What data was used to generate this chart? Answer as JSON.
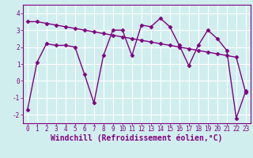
{
  "title": "",
  "xlabel": "Windchill (Refroidissement éolien,°C)",
  "background_color": "#d0eeee",
  "grid_color": "#ffffff",
  "line_color": "#800080",
  "x_values": [
    0,
    1,
    2,
    3,
    4,
    5,
    6,
    7,
    8,
    9,
    10,
    11,
    12,
    13,
    14,
    15,
    16,
    17,
    18,
    19,
    20,
    21,
    22,
    23
  ],
  "series1": [
    -1.7,
    1.1,
    2.2,
    2.1,
    2.1,
    2.0,
    0.4,
    -1.3,
    1.5,
    3.0,
    3.0,
    1.5,
    3.3,
    3.2,
    3.7,
    3.2,
    2.1,
    0.9,
    2.1,
    3.0,
    2.5,
    1.8,
    -2.2,
    -0.6
  ],
  "series2": [
    3.5,
    3.5,
    3.4,
    3.3,
    3.2,
    3.1,
    3.0,
    2.9,
    2.8,
    2.7,
    2.6,
    2.5,
    2.4,
    2.3,
    2.2,
    2.1,
    2.0,
    1.9,
    1.8,
    1.7,
    1.6,
    1.5,
    1.4,
    -0.7
  ],
  "ylim": [
    -2.5,
    4.5
  ],
  "xlim": [
    -0.5,
    23.5
  ],
  "yticks": [
    -2,
    -1,
    0,
    1,
    2,
    3,
    4
  ],
  "xticks": [
    0,
    1,
    2,
    3,
    4,
    5,
    6,
    7,
    8,
    9,
    10,
    11,
    12,
    13,
    14,
    15,
    16,
    17,
    18,
    19,
    20,
    21,
    22,
    23
  ],
  "marker": "D",
  "markersize": 2.5,
  "linewidth": 1.0,
  "tick_fontsize": 5.5,
  "xlabel_fontsize": 7.0
}
